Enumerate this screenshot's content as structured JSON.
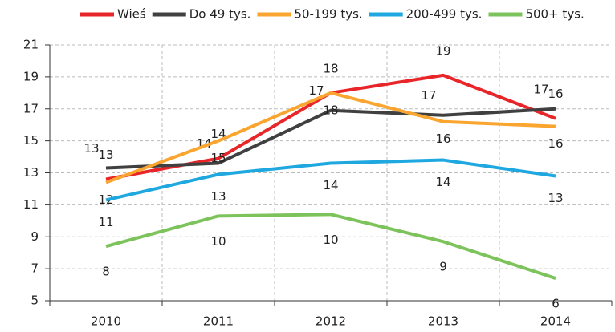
{
  "chart_data": {
    "type": "line",
    "legend": "top",
    "categories": [
      "2010",
      "2011",
      "2012",
      "2013",
      "2014"
    ],
    "series": [
      {
        "name": "Wieś",
        "color": "#e8262a",
        "values": [
          12.6,
          13.9,
          18.0,
          19.1,
          16.4
        ],
        "value_labels": [
          "13",
          "14",
          "18",
          "19",
          "16"
        ]
      },
      {
        "name": "Do 49 tys.",
        "color": "#404040",
        "values": [
          13.3,
          13.6,
          16.9,
          16.6,
          17.0
        ],
        "value_labels": [
          "13",
          "14",
          "17",
          "17",
          "17"
        ]
      },
      {
        "name": "50-199 tys.",
        "color": "#f9a530",
        "values": [
          12.4,
          15.0,
          18.0,
          16.2,
          15.9
        ],
        "value_labels": [
          "12",
          "15",
          "18",
          "16",
          "16"
        ]
      },
      {
        "name": "200-499 tys.",
        "color": "#1fa8e0",
        "values": [
          11.3,
          12.9,
          13.6,
          13.8,
          12.8
        ],
        "value_labels": [
          "11",
          "13",
          "14",
          "14",
          "13"
        ]
      },
      {
        "name": "500+ tys.",
        "color": "#7dc35b",
        "values": [
          8.4,
          10.3,
          10.4,
          8.7,
          6.4
        ],
        "value_labels": [
          "8",
          "10",
          "10",
          "9",
          "6"
        ]
      }
    ],
    "ylim": [
      5,
      21
    ],
    "yticks": [
      5,
      7,
      9,
      11,
      13,
      15,
      17,
      19,
      21
    ],
    "grid": true
  }
}
